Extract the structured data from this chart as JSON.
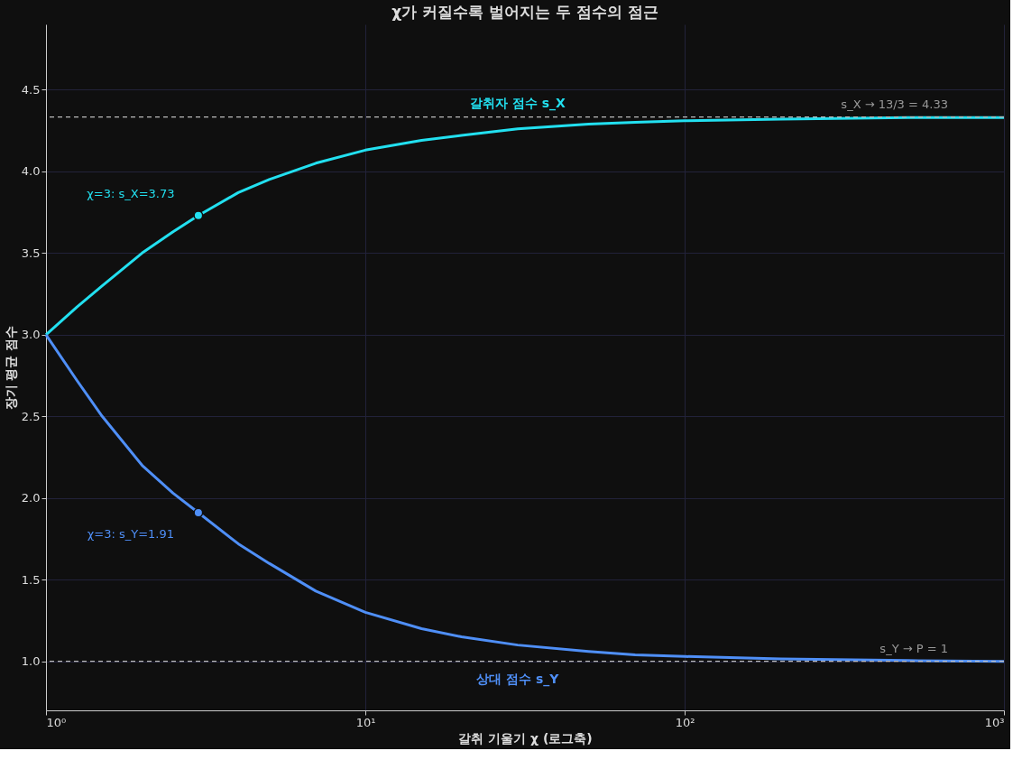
{
  "chart_data": {
    "type": "line",
    "title": "χ가 커질수록 벌어지는 두 점수의 점근",
    "xlabel": "갈취 기울기 χ (로그축)",
    "ylabel": "장기 평균 점수",
    "log": "x",
    "grid": true,
    "line_style": "solid",
    "xlim": [
      1,
      1000
    ],
    "xticks": [
      {
        "value": 1,
        "label": "10⁰"
      },
      {
        "value": 10,
        "label": "10¹"
      },
      {
        "value": 100,
        "label": "10²"
      },
      {
        "value": 1000,
        "label": "10³"
      }
    ],
    "ylim": [
      0.7,
      4.9
    ],
    "yticks": [
      {
        "value": 1,
        "label": "1.0"
      },
      1.5,
      {
        "value": 2,
        "label": "2.0"
      },
      2.5,
      {
        "value": 3,
        "label": "3.0"
      },
      3.5,
      {
        "value": 4,
        "label": "4.0"
      },
      4.5
    ],
    "series": [
      {
        "name": "갈취자 점수 s_X",
        "color": "#22e0f0",
        "x": [
          1,
          1.25,
          1.5,
          2,
          2.5,
          3,
          4,
          5,
          7,
          10,
          15,
          20,
          30,
          50,
          70,
          100,
          200,
          500,
          1000
        ],
        "values": [
          3.0,
          3.17,
          3.3,
          3.5,
          3.63,
          3.73,
          3.87,
          3.95,
          4.05,
          4.13,
          4.19,
          4.22,
          4.26,
          4.29,
          4.3,
          4.31,
          4.32,
          4.33,
          4.33
        ]
      },
      {
        "name": "상대 점수 s_Y",
        "color": "#4f8ff7",
        "x": [
          1,
          1.25,
          1.5,
          2,
          2.5,
          3,
          4,
          5,
          7,
          10,
          15,
          20,
          30,
          50,
          70,
          100,
          200,
          500,
          1000
        ],
        "values": [
          3.0,
          2.72,
          2.5,
          2.2,
          2.03,
          1.91,
          1.72,
          1.6,
          1.43,
          1.3,
          1.2,
          1.15,
          1.1,
          1.06,
          1.04,
          1.03,
          1.015,
          1.005,
          1.0
        ]
      },
      {
        "type": "scatter",
        "marker": "circle",
        "color": "#22e0f0",
        "x": [
          3
        ],
        "values": [
          3.73
        ]
      },
      {
        "type": "scatter",
        "marker": "circle",
        "color": "#4f8ff7",
        "x": [
          3
        ],
        "values": [
          1.91
        ]
      }
    ],
    "ref_lines": [
      {
        "axis": "y",
        "value": 4.333,
        "label": "s_X → 13/3 = 4.33",
        "color": "#bbbbbb",
        "line_style": "dashed"
      },
      {
        "axis": "y",
        "value": 1.0,
        "label": "s_Y → P = 1",
        "color": "#bbbbbb",
        "line_style": "dashed"
      }
    ],
    "annotations": [
      {
        "text": "χ=3: s_X=3.73",
        "x": 3,
        "y": 3.73
      },
      {
        "text": "χ=3: s_Y=1.91",
        "x": 3,
        "y": 1.91
      }
    ]
  }
}
